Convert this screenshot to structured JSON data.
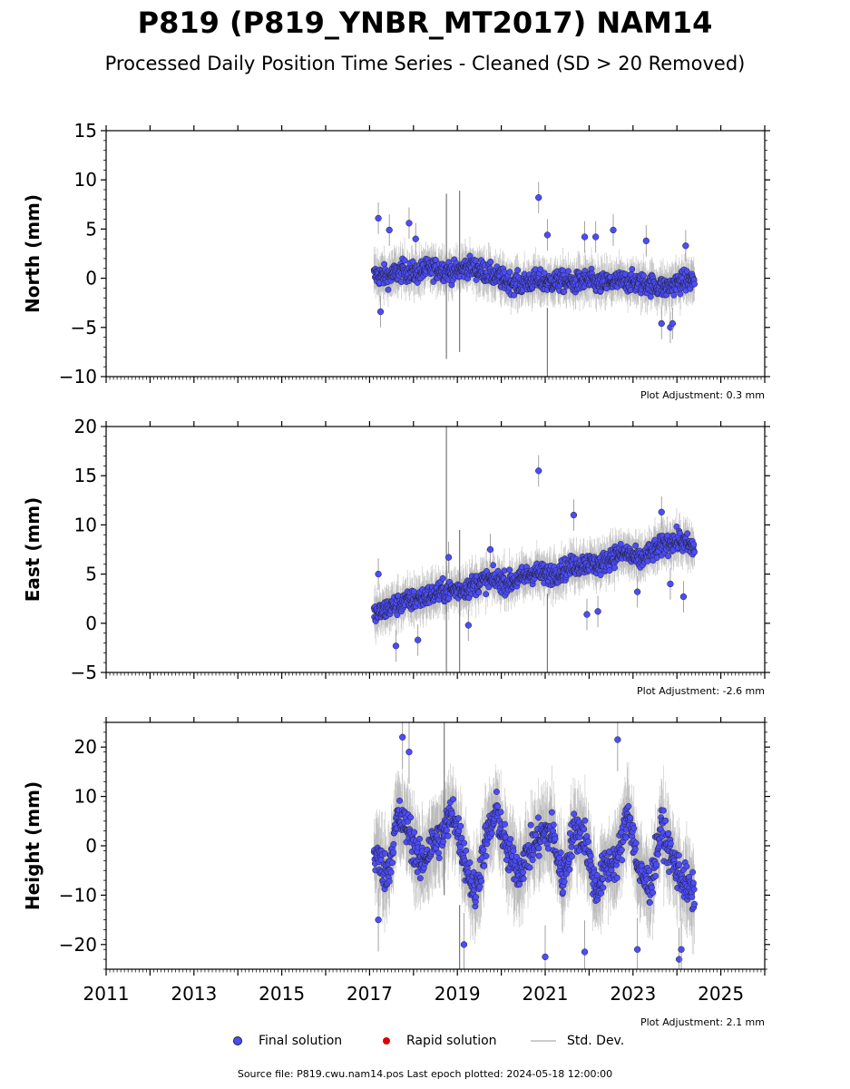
{
  "title": "P819 (P819_YNBR_MT2017) NAM14",
  "subtitle": "Processed Daily Position Time Series - Cleaned (SD > 20 Removed)",
  "footer": "Source file: P819.cwu.nam14.pos  Last epoch plotted: 2024-05-18 12:00:00",
  "legend": {
    "final": "Final solution",
    "rapid": "Rapid solution",
    "std": "Std. Dev."
  },
  "colors": {
    "final": "#4c4cff",
    "rapid": "#dd0000",
    "std": "#aaaaaa",
    "marker_edge": "#202020"
  },
  "chart_data": [
    {
      "type": "scatter",
      "ylabel": "North (mm)",
      "ylim": [
        -10,
        15
      ],
      "yticks": [
        -10,
        -5,
        0,
        5,
        10,
        15
      ],
      "xlim": [
        2011,
        2026
      ],
      "adjustment": "Plot Adjustment: 0.3 mm",
      "series": [
        {
          "name": "Final solution",
          "x": [
            2017.15,
            2017.45,
            2017.75,
            2018.05,
            2018.35,
            2018.65,
            2018.95,
            2019.25,
            2019.55,
            2019.85,
            2020.15,
            2020.45,
            2020.75,
            2021.05,
            2021.35,
            2021.65,
            2021.95,
            2022.25,
            2022.55,
            2022.85,
            2023.15,
            2023.45,
            2023.75,
            2024.05,
            2024.35
          ],
          "y": [
            0.3,
            0.2,
            0.8,
            0.5,
            1.0,
            0.9,
            0.6,
            1.2,
            0.8,
            0.2,
            -0.3,
            -0.6,
            -0.2,
            -0.4,
            -0.3,
            -0.5,
            -0.2,
            -0.6,
            -0.4,
            -0.3,
            -0.5,
            -0.7,
            -1.0,
            -0.4,
            -0.2
          ]
        }
      ],
      "outliers": [
        [
          2017.2,
          6.1
        ],
        [
          2017.45,
          4.9
        ],
        [
          2017.9,
          5.6
        ],
        [
          2018.05,
          4.0
        ],
        [
          2020.85,
          8.2
        ],
        [
          2021.05,
          4.4
        ],
        [
          2021.9,
          4.2
        ],
        [
          2022.15,
          4.2
        ],
        [
          2022.55,
          4.9
        ],
        [
          2023.3,
          3.8
        ],
        [
          2017.25,
          -3.4
        ],
        [
          2023.65,
          -4.6
        ],
        [
          2023.85,
          -5.0
        ],
        [
          2023.9,
          -4.6
        ],
        [
          2024.2,
          3.3
        ]
      ],
      "std_spikes": [
        [
          2018.75,
          -8.2,
          8.6
        ],
        [
          2019.05,
          -7.5,
          8.9
        ],
        [
          2021.05,
          -10,
          -3.0
        ]
      ]
    },
    {
      "type": "scatter",
      "ylabel": "East (mm)",
      "ylim": [
        -5,
        20
      ],
      "yticks": [
        -5,
        0,
        5,
        10,
        15,
        20
      ],
      "xlim": [
        2011,
        2026
      ],
      "adjustment": "Plot Adjustment: -2.6 mm",
      "series": [
        {
          "name": "Final solution",
          "x": [
            2017.15,
            2017.45,
            2017.75,
            2018.05,
            2018.35,
            2018.65,
            2018.95,
            2019.25,
            2019.55,
            2019.85,
            2020.15,
            2020.45,
            2020.75,
            2021.05,
            2021.35,
            2021.65,
            2021.95,
            2022.25,
            2022.55,
            2022.85,
            2023.15,
            2023.45,
            2023.75,
            2024.05,
            2024.35
          ],
          "y": [
            0.9,
            1.6,
            2.1,
            2.4,
            2.8,
            3.2,
            3.4,
            3.6,
            4.3,
            4.4,
            4.1,
            4.6,
            5.2,
            4.9,
            5.3,
            5.9,
            6.1,
            5.9,
            6.9,
            7.1,
            6.4,
            7.3,
            8.1,
            8.4,
            7.7
          ]
        }
      ],
      "outliers": [
        [
          2017.2,
          5.0
        ],
        [
          2017.6,
          -2.3
        ],
        [
          2018.1,
          -1.7
        ],
        [
          2018.8,
          6.7
        ],
        [
          2020.85,
          15.5
        ],
        [
          2021.65,
          11.0
        ],
        [
          2021.95,
          0.9
        ],
        [
          2022.2,
          1.2
        ],
        [
          2023.1,
          3.2
        ],
        [
          2023.65,
          11.3
        ],
        [
          2023.85,
          4.0
        ],
        [
          2024.15,
          2.7
        ],
        [
          2019.25,
          -0.2
        ],
        [
          2019.75,
          7.5
        ]
      ],
      "std_spikes": [
        [
          2018.75,
          -5,
          20
        ],
        [
          2019.05,
          -5,
          9.5
        ],
        [
          2021.05,
          -5,
          3.0
        ]
      ]
    },
    {
      "type": "scatter",
      "ylabel": "Height (mm)",
      "ylim": [
        -25,
        25
      ],
      "yticks": [
        -20,
        -10,
        0,
        10,
        20
      ],
      "xlim": [
        2011,
        2026
      ],
      "xticks": [
        2011,
        2013,
        2015,
        2017,
        2019,
        2021,
        2023,
        2025
      ],
      "adjustment": "Plot Adjustment: 2.1 mm",
      "series": [
        {
          "name": "Final solution",
          "x": [
            2017.15,
            2017.4,
            2017.65,
            2017.9,
            2018.15,
            2018.4,
            2018.65,
            2018.9,
            2019.15,
            2019.4,
            2019.65,
            2019.9,
            2020.15,
            2020.4,
            2020.65,
            2020.9,
            2021.15,
            2021.4,
            2021.65,
            2021.9,
            2022.15,
            2022.4,
            2022.65,
            2022.9,
            2023.15,
            2023.4,
            2023.65,
            2023.9,
            2024.15,
            2024.35
          ],
          "y": [
            -2,
            -6,
            6,
            3,
            -4,
            0,
            2,
            7,
            -2,
            -10,
            1,
            7,
            -2,
            -5,
            -1,
            2,
            3,
            -7,
            3,
            2,
            -9,
            -4,
            -3,
            7,
            -6,
            -8,
            4,
            -3,
            -7,
            -10
          ]
        }
      ],
      "outliers": [
        [
          2017.75,
          22.0
        ],
        [
          2017.9,
          19.0
        ],
        [
          2022.65,
          21.5
        ],
        [
          2017.2,
          -15
        ],
        [
          2019.15,
          -20
        ],
        [
          2021.0,
          -22.5
        ],
        [
          2021.9,
          -21.5
        ],
        [
          2023.1,
          -21
        ],
        [
          2024.05,
          -23
        ],
        [
          2024.1,
          -21
        ]
      ],
      "std_spikes": [
        [
          2018.7,
          -10,
          25
        ],
        [
          2019.05,
          -25,
          -12
        ]
      ]
    }
  ]
}
